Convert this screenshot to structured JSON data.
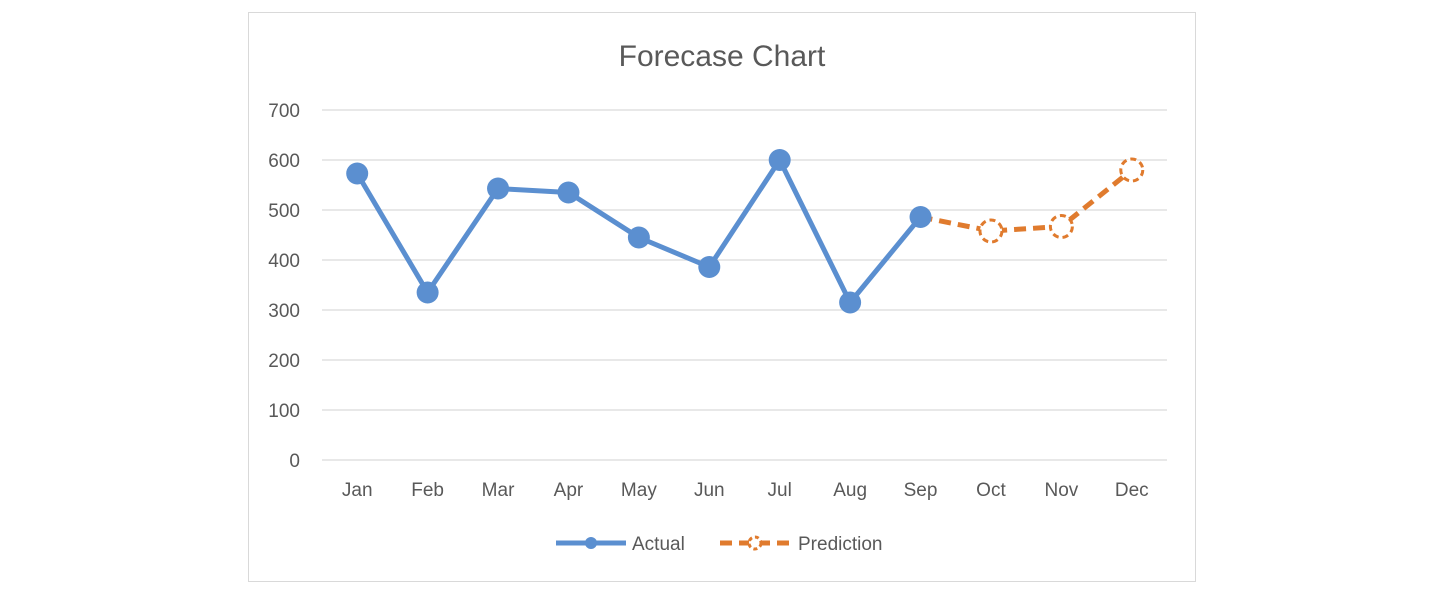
{
  "chart_data": {
    "type": "line",
    "title": "Forecase Chart",
    "xlabel": "",
    "ylabel": "",
    "categories": [
      "Jan",
      "Feb",
      "Mar",
      "Apr",
      "May",
      "Jun",
      "Jul",
      "Aug",
      "Sep",
      "Oct",
      "Nov",
      "Dec"
    ],
    "ylim": [
      0,
      700
    ],
    "yticks": [
      0,
      100,
      200,
      300,
      400,
      500,
      600,
      700
    ],
    "grid": true,
    "legend_position": "bottom",
    "series": [
      {
        "name": "Actual",
        "color": "#5b8fd0",
        "style": "solid",
        "marker": "filled-circle",
        "values": [
          573,
          335,
          543,
          535,
          445,
          386,
          600,
          315,
          486,
          null,
          null,
          null
        ]
      },
      {
        "name": "Prediction",
        "color": "#e07b2e",
        "style": "dashed",
        "marker": "hollow-dashed-circle",
        "values": [
          null,
          null,
          null,
          null,
          null,
          null,
          null,
          null,
          486,
          458,
          467,
          580
        ]
      }
    ]
  }
}
